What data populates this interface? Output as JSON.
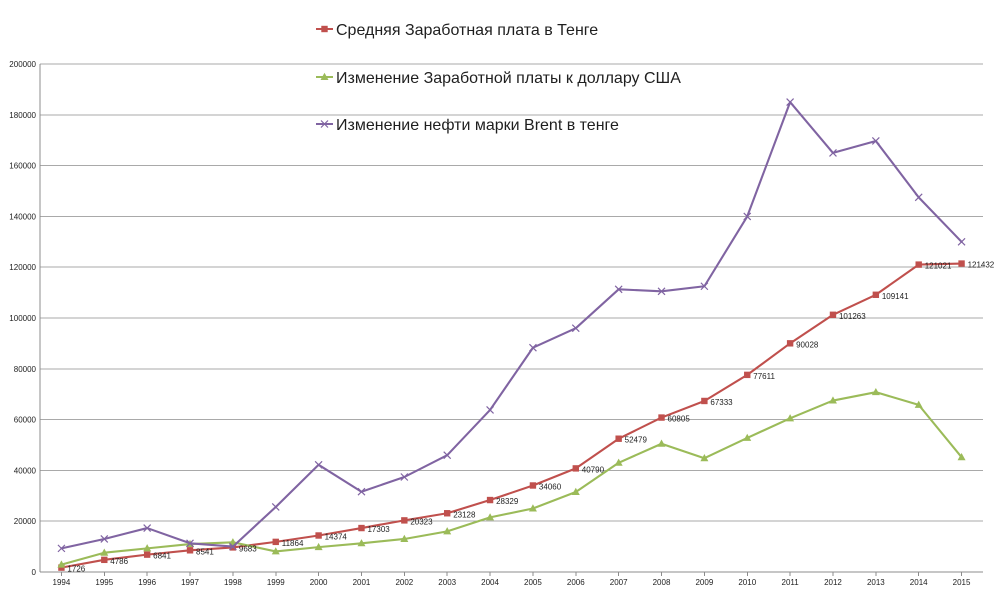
{
  "chart_data": {
    "type": "line",
    "title": "",
    "xlabel": "",
    "ylabel": "",
    "ylim": [
      0,
      200000
    ],
    "grid": true,
    "legend_position": "top-center",
    "categories": [
      "1994",
      "1995",
      "1996",
      "1997",
      "1998",
      "1999",
      "2000",
      "2001",
      "2002",
      "2003",
      "2004",
      "2005",
      "2006",
      "2007",
      "2008",
      "2009",
      "2010",
      "2011",
      "2012",
      "2013",
      "2014",
      "2015"
    ],
    "y_ticks": [
      "0",
      "20000",
      "40000",
      "60000",
      "80000",
      "100000",
      "120000",
      "140000",
      "160000",
      "180000",
      "200000"
    ],
    "series": [
      {
        "name": "Средняя Заработная плата в Тенге",
        "color": "#c0504d",
        "marker": "square",
        "values": [
          1726,
          4786,
          6841,
          8541,
          9683,
          11864,
          14374,
          17303,
          20323,
          23128,
          28329,
          34060,
          40790,
          52479,
          60805,
          67333,
          77611,
          90028,
          101263,
          109141,
          121021,
          121432
        ],
        "data_labels": [
          "1726",
          "4786",
          "6841",
          "8541",
          "9683",
          "11864",
          "14374",
          "17303",
          "20323",
          "23128",
          "28329",
          "34060",
          "40790",
          "52479",
          "60805",
          "67333",
          "77611",
          "90028",
          "101263",
          "109141",
          "121021",
          "121432"
        ]
      },
      {
        "name": "Изменение Заработной платы к доллару США",
        "color": "#9bbb59",
        "marker": "triangle",
        "values": [
          2900,
          7600,
          9300,
          11000,
          11700,
          8100,
          9800,
          11300,
          13000,
          16000,
          21500,
          25000,
          31500,
          43000,
          50500,
          44800,
          52800,
          60500,
          67500,
          70800,
          65800,
          45200
        ]
      },
      {
        "name": "Изменение нефти марки Brent в тенге",
        "color": "#8064a2",
        "marker": "x",
        "values": [
          9300,
          13000,
          17300,
          11300,
          10000,
          25600,
          42200,
          31600,
          37400,
          46000,
          63800,
          88300,
          96000,
          111300,
          110500,
          112500,
          140000,
          185000,
          165000,
          169700,
          147500,
          130000
        ]
      }
    ]
  }
}
